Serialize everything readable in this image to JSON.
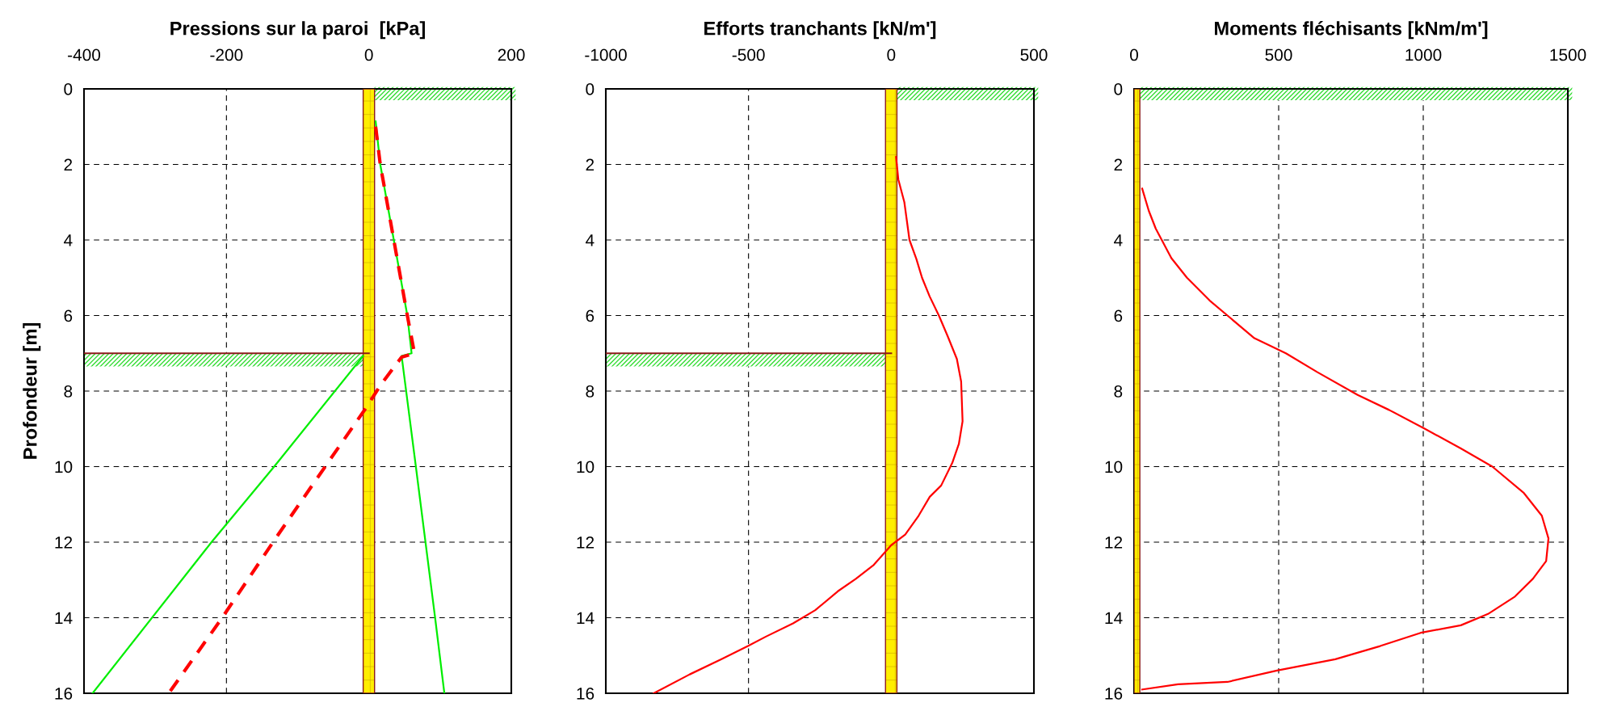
{
  "chart_data": [
    {
      "type": "line",
      "title": "Pressions sur la paroi  [kPa]",
      "ylabel": "Profondeur [m]",
      "xlim": [
        -400,
        200
      ],
      "xticks": [
        -400,
        -200,
        0,
        200
      ],
      "ylim": [
        16,
        0
      ],
      "yticks": [
        0,
        2,
        4,
        6,
        8,
        10,
        12,
        14,
        16
      ],
      "grid": true,
      "legend": false,
      "series": [
        {
          "color": "#00ee00",
          "line_style": "solid",
          "x": [
            9.5,
            16,
            35,
            54,
            60,
            46,
            66,
            93,
            106
          ],
          "values": [
            0.86,
            2,
            4,
            6,
            7,
            7.07,
            10,
            14,
            16
          ]
        },
        {
          "color": "#00ee00",
          "line_style": "solid",
          "x": [
            -8,
            -133,
            -221,
            -388
          ],
          "values": [
            7.07,
            10,
            12,
            16
          ]
        },
        {
          "color": "#8b1a1a",
          "line_style": "solid",
          "x": [
            -400,
            0
          ],
          "values": [
            7,
            7
          ]
        },
        {
          "color": "#ff0000",
          "line_style": "dashed",
          "x": [
            9.5,
            16,
            35,
            54,
            64,
            46,
            18,
            -6,
            -54,
            -131,
            -206,
            -281
          ],
          "values": [
            1.0,
            2,
            4,
            6,
            7.0,
            7.1,
            7.8,
            8.5,
            9.8,
            11.9,
            14,
            16
          ]
        }
      ],
      "bands": [
        {
          "axis": "x",
          "from": -8,
          "to": 8,
          "color": "#ffee00"
        }
      ]
    },
    {
      "type": "line",
      "title": "Efforts tranchants [kN/m']",
      "xlim": [
        -1000,
        500
      ],
      "xticks": [
        -1000,
        -500,
        0,
        500
      ],
      "ylim": [
        16,
        0
      ],
      "yticks": [
        0,
        2,
        4,
        6,
        8,
        10,
        12,
        14,
        16
      ],
      "grid": true,
      "legend": false,
      "bands": [
        {
          "axis": "x",
          "from": -20,
          "to": 20,
          "color": "#ffee00"
        }
      ],
      "series": [
        {
          "color": "#8b1a1a",
          "line_style": "solid",
          "x": [
            -1000,
            0
          ],
          "values": [
            7,
            7
          ]
        },
        {
          "color": "#ff0000",
          "line_style": "solid",
          "x": [
            17,
            25,
            46,
            64,
            88,
            108,
            135,
            167,
            198,
            230,
            245,
            250,
            237,
            214,
            175,
            135,
            96,
            49,
            0,
            -61,
            -124,
            -187,
            -266,
            -344,
            -439,
            -502,
            -596,
            -706,
            -832
          ],
          "values": [
            1.8,
            2.4,
            3.0,
            4.0,
            4.5,
            5.0,
            5.5,
            6.0,
            6.55,
            7.15,
            7.75,
            8.8,
            9.4,
            9.9,
            10.5,
            10.8,
            11.3,
            11.8,
            12.08,
            12.6,
            12.97,
            13.3,
            13.8,
            14.15,
            14.5,
            14.75,
            15.1,
            15.5,
            16
          ]
        }
      ]
    },
    {
      "type": "line",
      "title": "Moments fléchisants [kNm/m']",
      "xlim": [
        0,
        1500
      ],
      "xticks": [
        0,
        500,
        1000,
        1500
      ],
      "ylim": [
        16,
        0
      ],
      "yticks": [
        0,
        2,
        4,
        6,
        8,
        10,
        12,
        14,
        16
      ],
      "grid": true,
      "legend": false,
      "bands": [
        {
          "axis": "x",
          "from": 0,
          "to": 20,
          "color": "#ffee00"
        }
      ],
      "series": [
        {
          "color": "#ff0000",
          "line_style": "solid",
          "x": [
            28,
            51,
            75,
            129,
            183,
            261,
            323,
            416,
            525,
            634,
            773,
            882,
            1006,
            1130,
            1239,
            1348,
            1410,
            1433,
            1425,
            1379,
            1317,
            1224,
            1130,
            991,
            851,
            696,
            494,
            323,
            152,
            28
          ],
          "values": [
            2.64,
            3.23,
            3.7,
            4.48,
            5.0,
            5.6,
            6.0,
            6.6,
            7.0,
            7.5,
            8.1,
            8.5,
            9.0,
            9.52,
            10.0,
            10.7,
            11.3,
            11.9,
            12.5,
            12.97,
            13.44,
            13.9,
            14.2,
            14.4,
            14.75,
            15.1,
            15.4,
            15.7,
            15.76,
            15.9
          ]
        }
      ]
    }
  ]
}
